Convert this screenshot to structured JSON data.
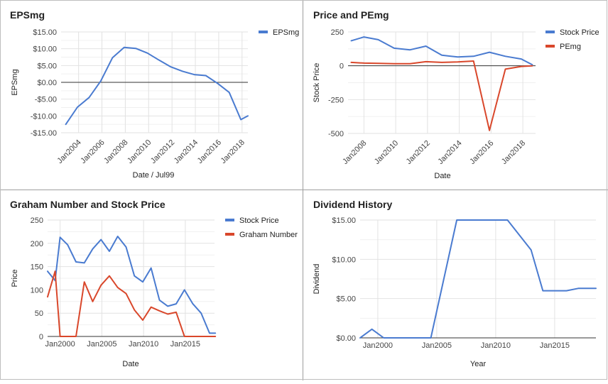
{
  "chart_data": [
    {
      "id": "eps",
      "type": "line",
      "title": "EPSmg",
      "xlabel": "Date / Jul99",
      "ylabel": "EPSmg",
      "xlim": [
        2002.5,
        2018.5
      ],
      "ylim": [
        -15,
        15
      ],
      "yticks": [
        15,
        10,
        5,
        0,
        -5,
        -10,
        -15
      ],
      "ytick_labels": [
        "$15.00",
        "$10.00",
        "$5.00",
        "$0.00",
        "-$5.00",
        "-$10.00",
        "-$15.00"
      ],
      "xticks": [
        2004,
        2006,
        2008,
        2010,
        2012,
        2014,
        2016,
        2018
      ],
      "xtick_labels": [
        "Jan2004",
        "Jan2006",
        "Jan2008",
        "Jan2010",
        "Jan2012",
        "Jan2014",
        "Jan2016",
        "Jan2018"
      ],
      "zero_line": true,
      "legend": "top-right",
      "series": [
        {
          "name": "EPSmg",
          "color": "#4a7bd0",
          "x": [
            2002.9,
            2003.9,
            2004.9,
            2005.9,
            2006.9,
            2007.9,
            2008.9,
            2009.9,
            2010.9,
            2011.9,
            2012.9,
            2013.9,
            2014.9,
            2015.9,
            2016.9,
            2017.9,
            2018.5
          ],
          "y": [
            -12.5,
            -7.4,
            -4.5,
            0.4,
            7.3,
            10.4,
            10.1,
            8.7,
            6.6,
            4.6,
            3.3,
            2.3,
            2.0,
            -0.3,
            -3.0,
            -11.1,
            -10.0
          ]
        }
      ]
    },
    {
      "id": "pe",
      "type": "line",
      "title": "Price and PEmg",
      "xlabel": "Date",
      "ylabel": "Stock Price",
      "xlim": [
        2007,
        2018.8
      ],
      "ylim": [
        -500,
        250
      ],
      "yticks": [
        250,
        0,
        -250,
        -500
      ],
      "ytick_labels": [
        "250",
        "0",
        "-250",
        "-500"
      ],
      "xticks": [
        2008,
        2010,
        2012,
        2014,
        2016,
        2018
      ],
      "xtick_labels": [
        "Jan2008",
        "Jan2010",
        "Jan2012",
        "Jan2014",
        "Jan2016",
        "Jan2018"
      ],
      "zero_line": true,
      "legend": "top-right",
      "series": [
        {
          "name": "Stock Price",
          "color": "#4a7bd0",
          "x": [
            2007.2,
            2008.0,
            2008.9,
            2009.9,
            2010.9,
            2011.9,
            2012.9,
            2013.9,
            2014.9,
            2015.9,
            2016.9,
            2017.9,
            2018.6
          ],
          "y": [
            185,
            213,
            193,
            130,
            118,
            145,
            78,
            65,
            70,
            100,
            70,
            50,
            7
          ]
        },
        {
          "name": "PEmg",
          "color": "#d9472b",
          "x": [
            2007.2,
            2008.0,
            2008.9,
            2009.9,
            2010.9,
            2011.9,
            2012.9,
            2013.9,
            2014.9,
            2015.9,
            2016.9,
            2017.9,
            2018.6
          ],
          "y": [
            25,
            20,
            18,
            15,
            15,
            30,
            25,
            28,
            35,
            -478,
            -25,
            -5,
            0
          ]
        }
      ]
    },
    {
      "id": "graham",
      "type": "line",
      "title": "Graham Number and Stock Price",
      "xlabel": "Date",
      "ylabel": "Price",
      "xlim": [
        1998.5,
        2018.5
      ],
      "ylim": [
        0,
        250
      ],
      "yticks": [
        250,
        200,
        150,
        100,
        50,
        0
      ],
      "ytick_labels": [
        "250",
        "200",
        "150",
        "100",
        "50",
        "0"
      ],
      "xticks": [
        2000,
        2005,
        2010,
        2015
      ],
      "xtick_labels": [
        "Jan2000",
        "Jan2005",
        "Jan2010",
        "Jan2015"
      ],
      "legend": "top-right",
      "series": [
        {
          "name": "Stock Price",
          "color": "#4a7bd0",
          "x": [
            1998.5,
            1999.4,
            2000.0,
            2000.9,
            2001.9,
            2002.9,
            2003.9,
            2004.9,
            2005.9,
            2006.9,
            2007.9,
            2008.9,
            2009.9,
            2010.9,
            2011.9,
            2012.9,
            2013.9,
            2014.9,
            2015.9,
            2016.9,
            2017.9,
            2018.6
          ],
          "y": [
            140,
            120,
            213,
            197,
            160,
            158,
            188,
            208,
            183,
            215,
            192,
            130,
            117,
            147,
            78,
            65,
            70,
            100,
            70,
            50,
            7,
            7
          ]
        },
        {
          "name": "Graham Number",
          "color": "#d9472b",
          "x": [
            1998.5,
            1999.4,
            2000.0,
            2000.9,
            2001.9,
            2002.9,
            2003.9,
            2004.9,
            2005.9,
            2006.9,
            2007.9,
            2008.9,
            2009.9,
            2010.9,
            2011.9,
            2012.9,
            2013.9,
            2014.9,
            2015.9,
            2016.9,
            2017.9,
            2018.6
          ],
          "y": [
            85,
            140,
            0,
            0,
            0,
            117,
            75,
            110,
            130,
            105,
            92,
            57,
            35,
            63,
            55,
            48,
            52,
            0,
            0,
            0,
            0,
            0
          ]
        }
      ]
    },
    {
      "id": "div",
      "type": "line",
      "title": "Dividend History",
      "xlabel": "Year",
      "ylabel": "Dividend",
      "xlim": [
        1998.5,
        2018.5
      ],
      "ylim": [
        0,
        15
      ],
      "yticks": [
        15,
        10,
        5,
        0
      ],
      "ytick_labels": [
        "$15.00",
        "$10.00",
        "$5.00",
        "$0.00"
      ],
      "xticks": [
        2000,
        2005,
        2010,
        2015
      ],
      "xtick_labels": [
        "Jan2000",
        "Jan2005",
        "Jan2010",
        "Jan2015"
      ],
      "series": [
        {
          "name": "",
          "color": "#4a7bd0",
          "x": [
            1998.5,
            1999.5,
            2000.5,
            2004.5,
            2006.7,
            2011.0,
            2013.0,
            2014.0,
            2016.0,
            2017.0,
            2018.5
          ],
          "y": [
            0,
            1.1,
            0,
            0,
            15,
            15,
            11.2,
            6.0,
            6.0,
            6.3,
            6.3
          ]
        }
      ]
    }
  ]
}
